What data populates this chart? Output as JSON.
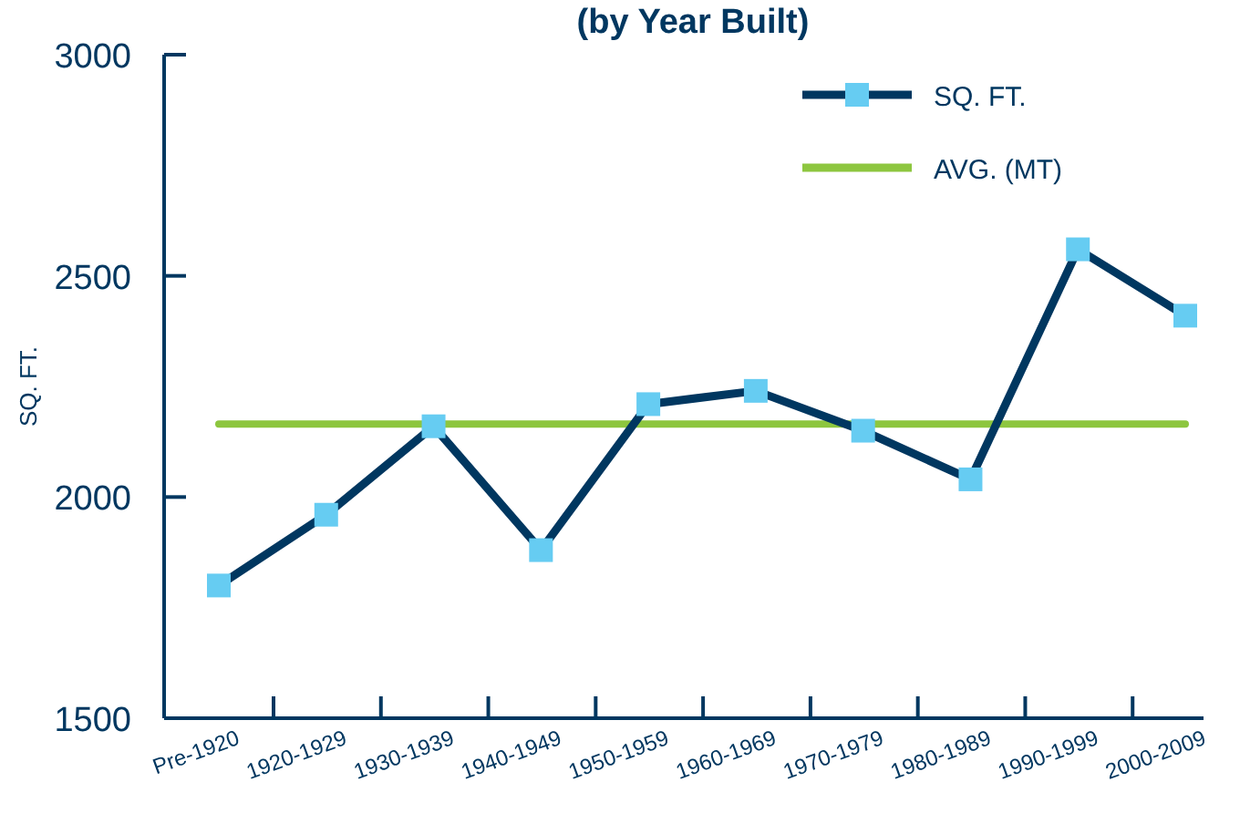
{
  "chart_data": {
    "type": "line",
    "title": "(by Year Built)",
    "ylabel": "SQ. FT.",
    "categories": [
      "Pre-1920",
      "1920-1929",
      "1930-1939",
      "1940-1949",
      "1950-1959",
      "1960-1969",
      "1970-1979",
      "1980-1989",
      "1990-1999",
      "2000-2009"
    ],
    "series": [
      {
        "name": "SQ. FT.",
        "color": "#003760",
        "colors": [
          "#66ccf2",
          "#66ccf2",
          "#66ccf2",
          "#66ccf2",
          "#66ccf2",
          "#66ccf2",
          "#66ccf2",
          "#66ccf2",
          "#66ccf2",
          "#66ccf2"
        ],
        "values": [
          1800,
          1960,
          2160,
          1880,
          2210,
          2240,
          2150,
          2040,
          2560,
          2410
        ]
      }
    ],
    "marker": "square",
    "ylim": [
      1500,
      3000
    ],
    "yticks": [
      1500,
      2000,
      2500,
      3000
    ],
    "ref_lines": [
      {
        "axis": "y",
        "value": 2165,
        "label": "AVG. (MT)",
        "color": "#8dc63f"
      }
    ],
    "legend": "top right",
    "grid": false
  }
}
